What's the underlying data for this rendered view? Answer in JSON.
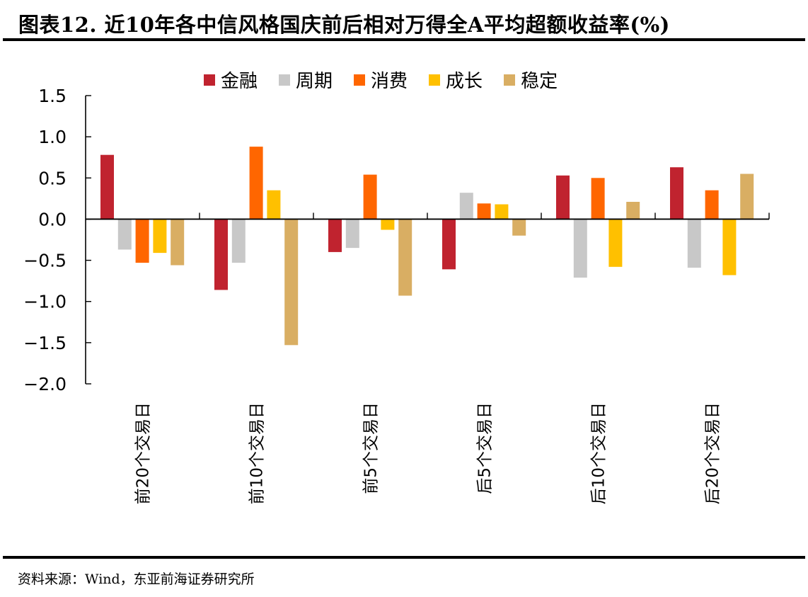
{
  "header": {
    "title": "图表12. 近10年各中信风格国庆前后相对万得全A平均超额收益率(%)"
  },
  "footer": {
    "source": "资料来源：Wind，东亚前海证券研究所"
  },
  "chart_data": {
    "type": "bar",
    "title": "近10年各中信风格国庆前后相对万得全A平均超额收益率(%)",
    "xlabel": "",
    "ylabel": "",
    "ylim": [
      -2.0,
      1.5
    ],
    "yticks": [
      1.5,
      1.0,
      0.5,
      0.0,
      -0.5,
      -1.0,
      -1.5,
      -2.0
    ],
    "ytick_labels": [
      "1.5",
      "1.0",
      "0.5",
      "0.0",
      "−0.5",
      "−1.0",
      "−1.5",
      "−2.0"
    ],
    "grid": false,
    "legend_position": "top-center",
    "categories": [
      "前20个交易日",
      "前10个交易日",
      "前5个交易日",
      "后5个交易日",
      "后10个交易日",
      "后20个交易日"
    ],
    "series": [
      {
        "name": "金融",
        "color": "#C0232F",
        "values": [
          0.78,
          -0.86,
          -0.4,
          -0.61,
          0.53,
          0.63
        ]
      },
      {
        "name": "周期",
        "color": "#C8C8C8",
        "values": [
          -0.37,
          -0.53,
          -0.35,
          0.32,
          -0.71,
          -0.59
        ]
      },
      {
        "name": "消费",
        "color": "#FF6600",
        "values": [
          -0.53,
          0.88,
          0.54,
          0.19,
          0.5,
          0.35
        ]
      },
      {
        "name": "成长",
        "color": "#FFC000",
        "values": [
          -0.41,
          0.35,
          -0.13,
          0.18,
          -0.58,
          -0.68
        ]
      },
      {
        "name": "稳定",
        "color": "#D9AE63",
        "values": [
          -0.56,
          -1.53,
          -0.93,
          -0.2,
          0.21,
          0.55
        ]
      }
    ]
  }
}
